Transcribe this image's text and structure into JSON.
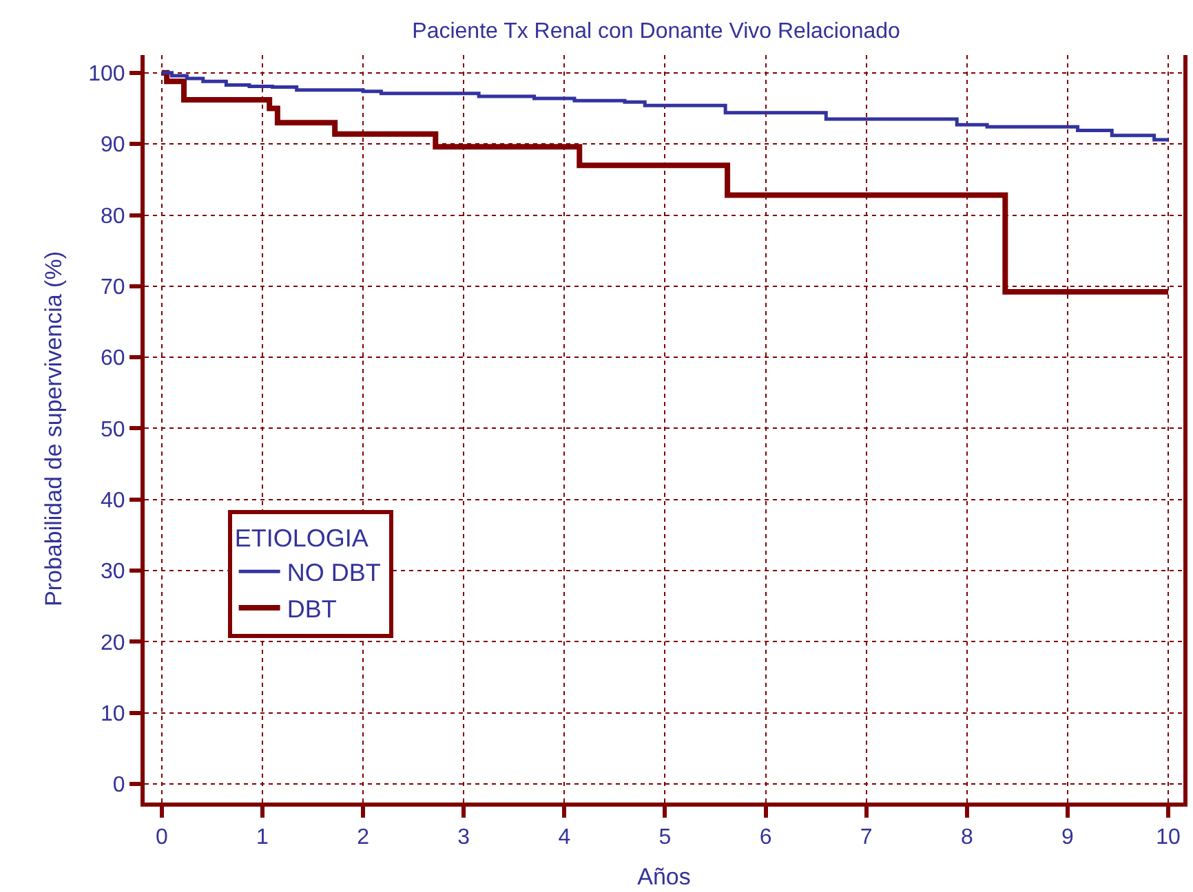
{
  "chart_data": {
    "type": "step",
    "title": "Paciente Tx Renal con Donante Vivo Relacionado",
    "xlabel": "Años",
    "ylabel": "Probabilidad de supervivencia (%)",
    "legend_title": "ETIOLOGIA",
    "series": [
      {
        "name": "NO DBT",
        "color": "#3333a0",
        "x": [
          0,
          0.1,
          0.25,
          0.41,
          0.64,
          0.87,
          1.1,
          1.34,
          2.0,
          2.18,
          3.15,
          3.7,
          4.1,
          4.6,
          4.8,
          5.6,
          6.6,
          7.9,
          8.2,
          9.1,
          9.44,
          9.86,
          10
        ],
        "values": [
          100,
          99.6,
          99.2,
          98.8,
          98.3,
          98.1,
          98.0,
          97.6,
          97.4,
          97.1,
          96.7,
          96.4,
          96.1,
          95.9,
          95.4,
          94.4,
          93.5,
          92.7,
          92.4,
          91.9,
          91.2,
          90.6,
          90.6
        ]
      },
      {
        "name": "DBT",
        "color": "#800000",
        "x": [
          0,
          0.05,
          0.22,
          1.07,
          1.15,
          1.72,
          2.72,
          4.15,
          5.62,
          8.38,
          10
        ],
        "values": [
          100,
          98.8,
          96.2,
          95.0,
          93.0,
          91.4,
          89.6,
          87.0,
          82.8,
          69.2,
          69.2
        ]
      }
    ],
    "xlim": [
      -0.17,
      10.15
    ],
    "ylim": [
      -2.6,
      102.5
    ],
    "xticks": [
      0,
      1,
      2,
      3,
      4,
      5,
      6,
      7,
      8,
      9,
      10
    ],
    "yticks": [
      0,
      10,
      20,
      30,
      40,
      50,
      60,
      70,
      80,
      90,
      100
    ],
    "grid": true,
    "legend": "bottom left",
    "line_style": "solid",
    "marker": "none"
  }
}
